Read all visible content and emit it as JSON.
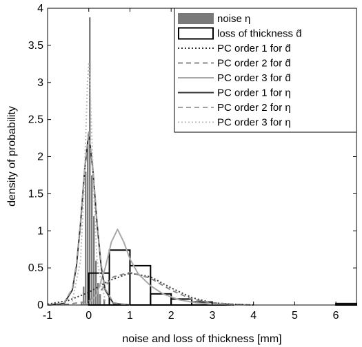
{
  "chart_data": {
    "type": "bar",
    "title": "",
    "xlabel": "noise and loss of thickness [mm]",
    "ylabel": "density of probability",
    "xlim": [
      -1,
      6.5
    ],
    "ylim": [
      0,
      4
    ],
    "xticks": [
      -1,
      0,
      1,
      2,
      3,
      4,
      5,
      6
    ],
    "xtick_labels": [
      "-1",
      "0",
      "1",
      "2",
      "3",
      "4",
      "5",
      "6"
    ],
    "yticks": [
      0,
      0.5,
      1,
      1.5,
      2,
      2.5,
      3,
      3.5,
      4
    ],
    "ytick_labels": [
      "0",
      "0.5",
      "1",
      "1.5",
      "2",
      "2.5",
      "3",
      "3.5",
      "4"
    ],
    "grid": false,
    "legend_position": "top-right",
    "colors": {
      "noise_bars": "#7a7a7a",
      "thickness_bars": "#000000",
      "pc_d_1": "#333333",
      "pc_d_2": "#888888",
      "pc_d_3": "#a8a8a8",
      "pc_eta_1": "#333333",
      "pc_eta_2": "#a0a0a0",
      "pc_eta_3": "#bdbdbd"
    },
    "histograms": [
      {
        "name": "noise η",
        "style": "filled",
        "bin_width": 0.05,
        "bin_centers": [
          -0.175,
          -0.125,
          -0.075,
          -0.025,
          0.025,
          0.075,
          0.125,
          0.175,
          0.225,
          0.275,
          0.375
        ],
        "values": [
          0.05,
          0.25,
          1.8,
          2.2,
          3.88,
          1.75,
          1.2,
          0.6,
          0.3,
          0.15,
          0.08
        ]
      },
      {
        "name": "loss of thickness d̂",
        "style": "outline",
        "bin_width": 0.5,
        "bin_centers": [
          0.25,
          0.75,
          1.25,
          1.75,
          2.25,
          2.75,
          3.25,
          6.25
        ],
        "values": [
          0.43,
          0.74,
          0.53,
          0.15,
          0.08,
          0.04,
          0.01,
          0.02
        ]
      }
    ],
    "series": [
      {
        "name": "PC order 1 for d̂",
        "dash": "dotted",
        "x": [
          -1,
          -0.5,
          0,
          0.5,
          1,
          1.5,
          2,
          2.5,
          3,
          3.5,
          4
        ],
        "values": [
          0.01,
          0.06,
          0.17,
          0.33,
          0.43,
          0.38,
          0.23,
          0.1,
          0.03,
          0.01,
          0
        ]
      },
      {
        "name": "PC order 2 for d̂",
        "dash": "dashed",
        "x": [
          -1,
          -0.5,
          0,
          0.3,
          0.6,
          1,
          1.5,
          2,
          2.5,
          3,
          3.5,
          4
        ],
        "values": [
          0,
          0.01,
          0.05,
          0.2,
          0.38,
          0.44,
          0.36,
          0.2,
          0.08,
          0.03,
          0.01,
          0
        ]
      },
      {
        "name": "PC order 3 for d̂",
        "dash": "solid",
        "x": [
          -0.2,
          0,
          0.2,
          0.4,
          0.55,
          0.7,
          0.85,
          1,
          1.2,
          1.5,
          1.8,
          2.2,
          2.6,
          3,
          3.5
        ],
        "values": [
          0,
          0.02,
          0.15,
          0.5,
          0.85,
          1.02,
          0.85,
          0.62,
          0.42,
          0.26,
          0.15,
          0.07,
          0.03,
          0.01,
          0
        ]
      },
      {
        "name": "PC order 1 for η",
        "dash": "solid",
        "x": [
          -1,
          -0.6,
          -0.4,
          -0.3,
          -0.2,
          -0.1,
          0,
          0.1,
          0.2,
          0.3,
          0.4,
          0.6,
          1
        ],
        "values": [
          0,
          0.02,
          0.2,
          0.52,
          1.1,
          1.82,
          2.32,
          1.82,
          1.1,
          0.52,
          0.2,
          0.02,
          0
        ]
      },
      {
        "name": "PC order 2 for η",
        "dash": "dashed",
        "x": [
          -1,
          -0.6,
          -0.4,
          -0.3,
          -0.2,
          -0.1,
          0,
          0.1,
          0.2,
          0.3,
          0.4,
          0.6,
          1
        ],
        "values": [
          0,
          0.03,
          0.22,
          0.55,
          1.12,
          1.85,
          2.33,
          1.85,
          1.12,
          0.55,
          0.22,
          0.03,
          0
        ]
      },
      {
        "name": "PC order 3 for η",
        "dash": "dotted",
        "x": [
          -0.4,
          -0.2,
          -0.12,
          -0.06,
          -0.03,
          0,
          0.03,
          0.06,
          0.12,
          0.2,
          0.4
        ],
        "values": [
          0.05,
          0.6,
          1.5,
          2.5,
          3.0,
          3.25,
          3.0,
          2.5,
          1.5,
          0.6,
          0.05
        ]
      }
    ],
    "legend": [
      {
        "label": "noise η",
        "kind": "patch-filled"
      },
      {
        "label": "loss of thickness d̂",
        "kind": "patch-outline"
      },
      {
        "label": "PC order 1 for d̂",
        "kind": "line",
        "series": 0
      },
      {
        "label": "PC order 2 for d̂",
        "kind": "line",
        "series": 1
      },
      {
        "label": "PC order 3 for d̂",
        "kind": "line",
        "series": 2
      },
      {
        "label": "PC order 1 for η",
        "kind": "line",
        "series": 3
      },
      {
        "label": "PC order 2 for η",
        "kind": "line",
        "series": 4
      },
      {
        "label": "PC order 3 for η",
        "kind": "line",
        "series": 5
      }
    ]
  }
}
